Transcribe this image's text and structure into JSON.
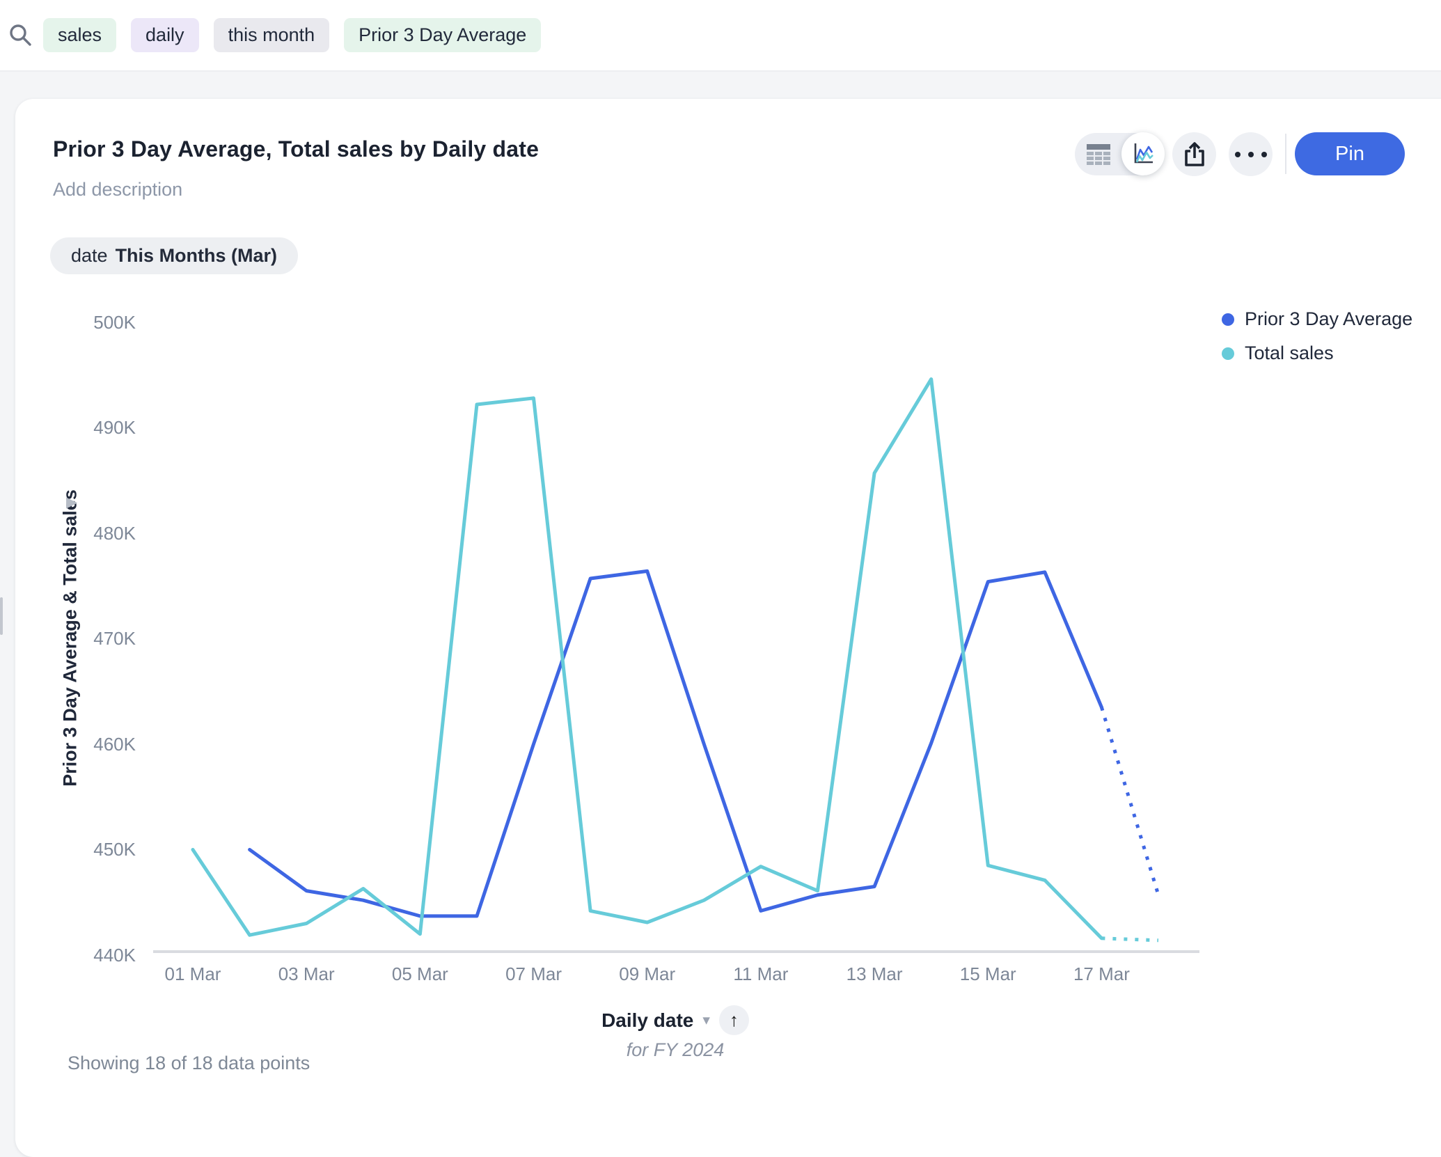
{
  "search_bar": {
    "tokens": [
      {
        "label": "sales",
        "bg": "#e5f4eb"
      },
      {
        "label": "daily",
        "bg": "#ece7f8"
      },
      {
        "label": "this month",
        "bg": "#e9e9ee"
      },
      {
        "label": "Prior 3 Day Average",
        "bg": "#e5f4eb"
      }
    ]
  },
  "card": {
    "title": "Prior 3 Day Average, Total sales by Daily date",
    "description_placeholder": "Add description",
    "toolbar": {
      "pin_label": "Pin"
    },
    "filter_chip": {
      "dimension": "date",
      "value": "This Months (Mar)"
    },
    "footer": "Showing 18 of 18 data points"
  },
  "icons": {
    "search": "magnifier",
    "table_view": "table-grid",
    "chart_view": "line-chart",
    "share": "share-up-arrow",
    "more": "ellipsis",
    "sort_glyph": "▾",
    "axis_up_glyph": "↑",
    "expand_glyph": "▶"
  },
  "chart_data": {
    "type": "line",
    "title": "Prior 3 Day Average, Total sales by Daily date",
    "xlabel": "Daily date",
    "x_sublabel": "for FY 2024",
    "ylabel": "Prior 3 Day Average & Total sales",
    "values_unit": "thousands (K)",
    "ylim": [
      440,
      500
    ],
    "y_tick_step": 10,
    "y_tick_labels": [
      "500K",
      "490K",
      "480K",
      "470K",
      "460K",
      "450K",
      "440K"
    ],
    "x_tick_labels": [
      "01 Mar",
      "03 Mar",
      "05 Mar",
      "07 Mar",
      "09 Mar",
      "11 Mar",
      "13 Mar",
      "15 Mar",
      "17 Mar"
    ],
    "categories": [
      "01 Mar",
      "02 Mar",
      "03 Mar",
      "04 Mar",
      "05 Mar",
      "06 Mar",
      "07 Mar",
      "08 Mar",
      "09 Mar",
      "10 Mar",
      "11 Mar",
      "12 Mar",
      "13 Mar",
      "14 Mar",
      "15 Mar",
      "16 Mar",
      "17 Mar",
      "18 Mar"
    ],
    "grid": false,
    "legend_position": "top-right",
    "series": [
      {
        "name": "Prior 3 Day Average",
        "color": "#3E66E3",
        "dotted_last_segment": true,
        "values": [
          null,
          450.0,
          446.1,
          445.2,
          443.7,
          443.7,
          460.0,
          475.7,
          476.4,
          460.0,
          444.2,
          445.7,
          446.5,
          460.1,
          475.4,
          476.3,
          463.5,
          445.7
        ]
      },
      {
        "name": "Total sales",
        "color": "#66CBD9",
        "dotted_last_segment": true,
        "values": [
          450.0,
          441.9,
          443.0,
          446.3,
          442.0,
          492.2,
          492.8,
          444.2,
          443.1,
          445.2,
          448.4,
          446.1,
          485.7,
          494.6,
          448.5,
          447.1,
          441.6,
          441.4
        ]
      }
    ]
  }
}
